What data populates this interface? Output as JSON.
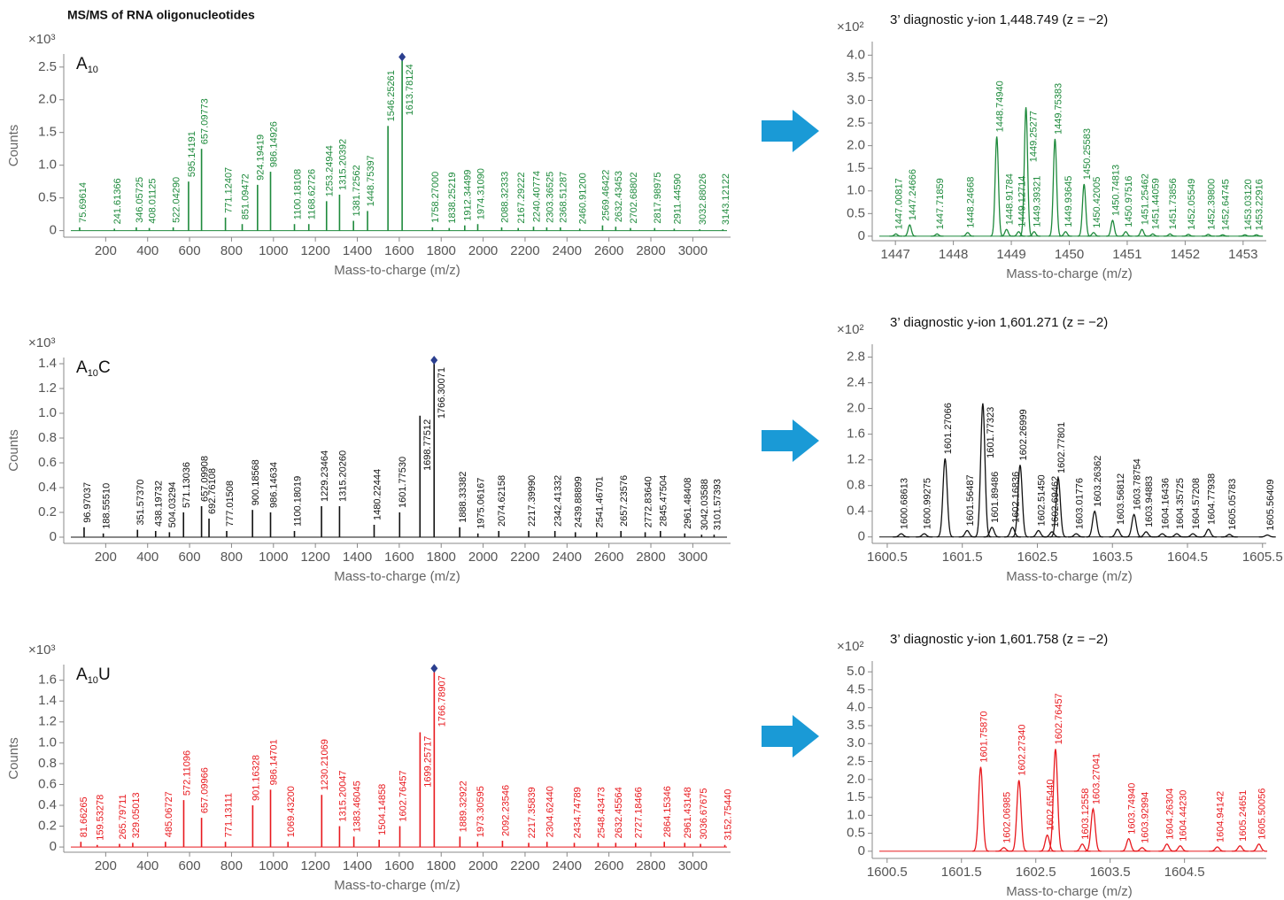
{
  "title": "MS/MS of RNA oligonucleotides",
  "chart_data": [
    {
      "type": "stem",
      "sample": {
        "name": "A",
        "subscript": "10"
      },
      "color": "#1e8a3c",
      "y_multiplier": "×10³",
      "ylabel": "Counts",
      "xlabel": "Mass-to-charge (m/z)",
      "xlim": [
        0,
        3180
      ],
      "xticks": [
        200,
        400,
        600,
        800,
        1000,
        1200,
        1400,
        1600,
        1800,
        2000,
        2200,
        2400,
        2600,
        2800,
        3000
      ],
      "ylim": [
        -0.1,
        2.7
      ],
      "yticks": [
        0,
        0.5,
        {
          "value": 1,
          "label": "1.0"
        },
        1.5,
        {
          "value": 2,
          "label": "2.0"
        },
        2.5
      ],
      "x": [
        75.69614,
        241.61366,
        346.05725,
        408.01125,
        522.0429,
        595.14191,
        657.09773,
        771.12407,
        851.09472,
        924.19419,
        986.14926,
        1100.18108,
        1168.62726,
        1253.24944,
        1315.20392,
        1381.72562,
        1448.75397,
        1546.25261,
        1613.78124,
        1758.27,
        1838.25219,
        1912.34499,
        1974.3109,
        2088.32333,
        2167.29222,
        2240.40774,
        2303.36525,
        2368.51287,
        2460.912,
        2569.46422,
        2632.43453,
        2702.68802,
        2817.98975,
        2911.4459,
        3032.88026,
        3143.12122
      ],
      "peak_labels": [
        "75.69614",
        "241.61366",
        "346.05725",
        "408.01125",
        "522.04290",
        "595.14191",
        "657.09773",
        "771.12407",
        "851.09472",
        "924.19419",
        "986.14926",
        "1100.18108",
        "1168.62726",
        "1253.24944",
        "1315.20392",
        "1381.72562",
        "1448.75397",
        "1546.25261",
        "1613.78124",
        "1758.27000",
        "1838.25219",
        "1912.34499",
        "1974.31090",
        "2088.32333",
        "2167.29222",
        "2240.40774",
        "2303.36525",
        "2368.51287",
        "2460.91200",
        "2569.46422",
        "2632.43453",
        "2702.68802",
        "2817.98975",
        "2911.44590",
        "3032.88026",
        "3143.12122"
      ],
      "values": [
        0.05,
        0.03,
        0.05,
        0.04,
        0.05,
        0.75,
        1.25,
        0.2,
        0.1,
        0.7,
        0.9,
        0.1,
        0.1,
        0.45,
        0.55,
        0.15,
        0.3,
        1.6,
        2.6,
        0.05,
        0.04,
        0.08,
        0.1,
        0.05,
        0.04,
        0.06,
        0.05,
        0.05,
        0.03,
        0.08,
        0.06,
        0.04,
        0.04,
        0.03,
        0.02,
        0.02
      ]
    },
    {
      "type": "profile",
      "title": "3’ diagnostic y-ion 1,448.749 (z = −2)",
      "color": "#1e8a3c",
      "y_multiplier": "×10²",
      "xlabel": "Mass-to-charge (m/z)",
      "xlim": [
        1446.6,
        1453.4
      ],
      "xticks": [
        1447,
        1448,
        1449,
        1450,
        1451,
        1452,
        1453
      ],
      "ylim": [
        -0.1,
        4.3
      ],
      "yticks": [
        0,
        0.5,
        {
          "value": 1,
          "label": "1.0"
        },
        1.5,
        {
          "value": 2,
          "label": "2.0"
        },
        2.5,
        {
          "value": 3,
          "label": "3.0"
        },
        3.5,
        {
          "value": 4,
          "label": "4.0"
        }
      ],
      "x": [
        1447.00817,
        1447.24666,
        1447.71859,
        1448.24668,
        1448.7494,
        1448.91784,
        1449.12714,
        1449.25277,
        1449.39321,
        1449.75383,
        1449.93645,
        1450.25583,
        1450.42005,
        1450.74813,
        1450.97516,
        1451.25462,
        1451.44059,
        1451.73856,
        1452.05549,
        1452.398,
        1452.64745,
        1453.0312,
        1453.22916
      ],
      "peak_labels": [
        "1447.00817",
        "1447.24666",
        "1447.71859",
        "1448.24668",
        "1448.74940",
        "1448.91784",
        "1449.12714",
        "1449.25277",
        "1449.39321",
        "1449.75383",
        "1449.93645",
        "1450.25583",
        "1450.42005",
        "1450.74813",
        "1450.97516",
        "1451.25462",
        "1451.44059",
        "1451.73856",
        "1452.05549",
        "1452.39800",
        "1452.64745",
        "1453.03120",
        "1453.22916"
      ],
      "values": [
        0.05,
        0.25,
        0.05,
        0.08,
        2.2,
        0.15,
        0.1,
        2.85,
        0.1,
        2.15,
        0.1,
        1.15,
        0.08,
        0.35,
        0.1,
        0.15,
        0.05,
        0.05,
        0.04,
        0.04,
        0.03,
        0.03,
        0.03
      ]
    },
    {
      "type": "stem",
      "sample": {
        "name": "A",
        "subscript": "10",
        "suffix": "C"
      },
      "color": "#111111",
      "y_multiplier": "×10³",
      "ylabel": "Counts",
      "xlabel": "Mass-to-charge (m/z)",
      "xlim": [
        0,
        3180
      ],
      "xticks": [
        200,
        400,
        600,
        800,
        1000,
        1200,
        1400,
        1600,
        1800,
        2000,
        2200,
        2400,
        2600,
        2800,
        3000
      ],
      "ylim": [
        -0.05,
        1.45
      ],
      "yticks": [
        0,
        0.2,
        0.4,
        0.6,
        0.8,
        {
          "value": 1,
          "label": "1.0"
        },
        1.2,
        1.4
      ],
      "x": [
        96.97037,
        188.5551,
        351.5737,
        438.19732,
        504.03294,
        571.13036,
        657.09908,
        692.76108,
        777.01508,
        900.18568,
        986.14634,
        1100.18019,
        1229.23464,
        1315.2026,
        1480.22444,
        1601.7753,
        1698.77512,
        1766.30071,
        1888.33382,
        1975.06167,
        2074.62158,
        2217.3999,
        2342.41332,
        2439.88899,
        2541.46701,
        2657.23576,
        2772.8364,
        2845.47504,
        2961.48408,
        3042.03588,
        3101.57393
      ],
      "peak_labels": [
        "96.97037",
        "188.55510",
        "351.57370",
        "438.19732",
        "504.03294",
        "571.13036",
        "657.09908",
        "692.76108",
        "777.01508",
        "900.18568",
        "986.14634",
        "1100.18019",
        "1229.23464",
        "1315.20260",
        "1480.22444",
        "1601.77530",
        "1698.77512",
        "1766.30071",
        "1888.33382",
        "1975.06167",
        "2074.62158",
        "2217.39990",
        "2342.41332",
        "2439.88899",
        "2541.46701",
        "2657.23576",
        "2772.83640",
        "2845.47504",
        "2961.48408",
        "3042.03588",
        "3101.57393"
      ],
      "values": [
        0.08,
        0.03,
        0.06,
        0.05,
        0.04,
        0.2,
        0.25,
        0.15,
        0.05,
        0.22,
        0.2,
        0.05,
        0.25,
        0.25,
        0.1,
        0.2,
        0.98,
        1.4,
        0.08,
        0.03,
        0.05,
        0.05,
        0.05,
        0.04,
        0.04,
        0.05,
        0.04,
        0.05,
        0.03,
        0.02,
        0.02
      ]
    },
    {
      "type": "profile",
      "title": "3’ diagnostic y-ion 1,601.271 (z = −2)",
      "color": "#111111",
      "y_multiplier": "×10²",
      "xlabel": "Mass-to-charge (m/z)",
      "xlim": [
        1600.3,
        1605.55
      ],
      "xticks": [
        1600.5,
        1601.5,
        1602.5,
        1603.5,
        1604.5,
        1605.5
      ],
      "ylim": [
        -0.1,
        3.0
      ],
      "yticks": [
        0,
        0.4,
        0.8,
        1.2,
        1.6,
        {
          "value": 2,
          "label": "2.0"
        },
        2.4,
        2.8
      ],
      "x": [
        1600.68613,
        1600.99275,
        1601.27066,
        1601.56487,
        1601.77323,
        1601.89486,
        1602.16836,
        1602.26999,
        1602.5145,
        1602.69462,
        1602.77801,
        1603.01776,
        1603.26362,
        1603.56812,
        1603.78754,
        1603.94883,
        1604.16436,
        1604.35725,
        1604.57208,
        1604.77938,
        1605.05783,
        1605.56409
      ],
      "peak_labels": [
        "1600.68613",
        "1600.99275",
        "1601.27066",
        "1601.56487",
        "1601.77323",
        "1601.89486",
        "1602.16836",
        "1602.26999",
        "1602.51450",
        "1602.69462",
        "1602.77801",
        "1603.01776",
        "1603.26362",
        "1603.56812",
        "1603.78754",
        "1603.94883",
        "1604.16436",
        "1604.35725",
        "1604.57208",
        "1604.77938",
        "1605.05783",
        "1605.56409"
      ],
      "values": [
        0.05,
        0.05,
        1.22,
        0.1,
        2.08,
        0.15,
        0.15,
        1.12,
        0.1,
        0.08,
        0.92,
        0.05,
        0.4,
        0.12,
        0.35,
        0.08,
        0.05,
        0.05,
        0.05,
        0.12,
        0.04,
        0.03
      ]
    },
    {
      "type": "stem",
      "sample": {
        "name": "A",
        "subscript": "10",
        "suffix": "U"
      },
      "color": "#e8191e",
      "y_multiplier": "×10³",
      "ylabel": "Counts",
      "xlabel": "Mass-to-charge (m/z)",
      "xlim": [
        0,
        3180
      ],
      "xticks": [
        200,
        400,
        600,
        800,
        1000,
        1200,
        1400,
        1600,
        1800,
        2000,
        2200,
        2400,
        2600,
        2800,
        3000
      ],
      "ylim": [
        -0.05,
        1.75
      ],
      "yticks": [
        0,
        0.2,
        0.4,
        0.6,
        0.8,
        {
          "value": 1,
          "label": "1.0"
        },
        1.2,
        1.4,
        1.6
      ],
      "x": [
        81.66265,
        159.53278,
        265.79711,
        329.05013,
        485.06727,
        572.11096,
        657.09966,
        771.13111,
        901.16328,
        986.14701,
        1069.432,
        1230.21069,
        1315.20047,
        1383.46045,
        1504.14858,
        1602.76457,
        1699.25717,
        1766.78907,
        1889.32922,
        1973.30595,
        2092.23546,
        2217.35839,
        2304.6244,
        2434.74789,
        2548.43473,
        2632.45564,
        2727.18466,
        2864.15346,
        2961.43148,
        3036.67675,
        3152.7544
      ],
      "peak_labels": [
        "81.66265",
        "159.53278",
        "265.79711",
        "329.05013",
        "485.06727",
        "572.11096",
        "657.09966",
        "771.13111",
        "901.16328",
        "986.14701",
        "1069.43200",
        "1230.21069",
        "1315.20047",
        "1383.46045",
        "1504.14858",
        "1602.76457",
        "1699.25717",
        "1766.78907",
        "1889.32922",
        "1973.30595",
        "2092.23546",
        "2217.35839",
        "2304.62440",
        "2434.74789",
        "2548.43473",
        "2632.45564",
        "2727.18466",
        "2864.15346",
        "2961.43148",
        "3036.67675",
        "3152.75440"
      ],
      "values": [
        0.05,
        0.02,
        0.03,
        0.04,
        0.05,
        0.45,
        0.28,
        0.05,
        0.4,
        0.55,
        0.05,
        0.5,
        0.2,
        0.1,
        0.07,
        0.2,
        1.1,
        1.68,
        0.1,
        0.05,
        0.06,
        0.04,
        0.05,
        0.04,
        0.04,
        0.04,
        0.04,
        0.05,
        0.04,
        0.03,
        0.02
      ]
    },
    {
      "type": "profile",
      "title": "3’ diagnostic y-ion 1,601.758 (z = −2)",
      "color": "#e8191e",
      "y_multiplier": "×10²",
      "xlabel": "Mass-to-charge (m/z)",
      "xlim": [
        1600.3,
        1605.6
      ],
      "xticks": [
        1600.5,
        1601.5,
        1602.5,
        1603.5,
        1604.5
      ],
      "ylim": [
        -0.2,
        5.3
      ],
      "yticks": [
        0,
        0.5,
        {
          "value": 1,
          "label": "1.0"
        },
        1.5,
        {
          "value": 2,
          "label": "2.0"
        },
        2.5,
        {
          "value": 3,
          "label": "3.0"
        },
        3.5,
        {
          "value": 4,
          "label": "4.0"
        },
        4.5,
        {
          "value": 5,
          "label": "5.0"
        }
      ],
      "x": [
        1601.7587,
        1602.06985,
        1602.2734,
        1602.6544,
        1602.76457,
        1603.12558,
        1603.27041,
        1603.7494,
        1603.92994,
        1604.26304,
        1604.4423,
        1604.94142,
        1605.24651,
        1605.50056
      ],
      "peak_labels": [
        "1601.75870",
        "1602.06985",
        "1602.27340",
        "1602.65440",
        "1602.76457",
        "1603.12558",
        "1603.27041",
        "1603.74940",
        "1603.92994",
        "1604.26304",
        "1604.44230",
        "1604.94142",
        "1605.24651",
        "1605.50056"
      ],
      "values": [
        2.35,
        0.1,
        1.98,
        0.45,
        2.85,
        0.2,
        1.18,
        0.35,
        0.1,
        0.2,
        0.15,
        0.12,
        0.15,
        0.2
      ]
    }
  ]
}
